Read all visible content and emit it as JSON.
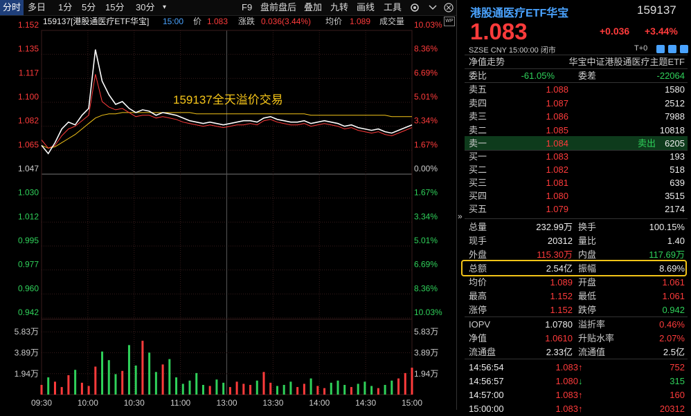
{
  "toolbar": {
    "tabs": [
      "分时",
      "多日",
      "1分",
      "5分",
      "15分",
      "30分",
      "▾"
    ],
    "right_items": [
      "F9",
      "盘前盘后",
      "叠加",
      "九转",
      "画线",
      "工具"
    ],
    "gear": "gear-icon",
    "chevron": "chevron-down-icon"
  },
  "chart_header": {
    "name": "159137[港股通医疗ETF华宝]",
    "time": "15:00",
    "price_label": "价",
    "price": "1.083",
    "change_label": "涨跌",
    "change": "0.036(3.44%)",
    "avg_label": "均价",
    "avg": "1.089",
    "vol_label": "成交量"
  },
  "annotation": "159137全天溢价交易",
  "chart_data": {
    "type": "line",
    "y_ticks_left": [
      "1.152",
      "1.135",
      "1.117",
      "1.100",
      "1.082",
      "1.065",
      "1.047",
      "1.030",
      "1.012",
      "0.995",
      "0.977",
      "0.960",
      "0.942"
    ],
    "y_ticks_right": [
      "10.03%",
      "8.36%",
      "6.69%",
      "5.01%",
      "3.34%",
      "1.67%",
      "0.00%",
      "1.67%",
      "3.34%",
      "5.01%",
      "6.69%",
      "8.36%",
      "10.03%"
    ],
    "vol_ticks": [
      "5.83万",
      "3.89万",
      "1.94万"
    ],
    "x_ticks": [
      "09:30",
      "10:00",
      "10:30",
      "11:00",
      "13:00",
      "13:30",
      "14:00",
      "14:30",
      "15:00"
    ],
    "ylim": [
      0.942,
      1.152
    ],
    "prev_close": 1.047,
    "price_series": [
      1.068,
      1.062,
      1.07,
      1.08,
      1.085,
      1.083,
      1.09,
      1.095,
      1.138,
      1.115,
      1.105,
      1.098,
      1.1,
      1.095,
      1.092,
      1.094,
      1.093,
      1.09,
      1.092,
      1.091,
      1.09,
      1.088,
      1.086,
      1.085,
      1.084,
      1.085,
      1.084,
      1.083,
      1.084,
      1.085,
      1.086,
      1.086,
      1.085,
      1.088,
      1.089,
      1.087,
      1.086,
      1.085,
      1.085,
      1.086,
      1.084,
      1.085,
      1.086,
      1.085,
      1.084,
      1.082,
      1.083,
      1.081,
      1.08,
      1.079,
      1.08,
      1.078,
      1.077,
      1.079,
      1.081,
      1.083
    ],
    "nav_series": [
      1.072,
      1.066,
      1.068,
      1.075,
      1.08,
      1.082,
      1.086,
      1.09,
      1.12,
      1.1,
      1.096,
      1.094,
      1.095,
      1.092,
      1.089,
      1.09,
      1.09,
      1.088,
      1.089,
      1.088,
      1.087,
      1.085,
      1.084,
      1.083,
      1.082,
      1.083,
      1.082,
      1.081,
      1.082,
      1.083,
      1.083,
      1.084,
      1.083,
      1.086,
      1.087,
      1.085,
      1.084,
      1.083,
      1.083,
      1.084,
      1.082,
      1.083,
      1.084,
      1.083,
      1.082,
      1.08,
      1.081,
      1.079,
      1.078,
      1.077,
      1.078,
      1.076,
      1.075,
      1.077,
      1.079,
      1.081
    ],
    "avg_series": [
      1.068,
      1.066,
      1.067,
      1.07,
      1.073,
      1.076,
      1.08,
      1.084,
      1.088,
      1.09,
      1.091,
      1.091,
      1.092,
      1.092,
      1.092,
      1.092,
      1.092,
      1.092,
      1.092,
      1.092,
      1.092,
      1.092,
      1.092,
      1.091,
      1.091,
      1.091,
      1.091,
      1.091,
      1.091,
      1.091,
      1.091,
      1.091,
      1.091,
      1.091,
      1.091,
      1.091,
      1.091,
      1.091,
      1.091,
      1.091,
      1.09,
      1.09,
      1.09,
      1.09,
      1.09,
      1.09,
      1.09,
      1.09,
      1.09,
      1.09,
      1.09,
      1.09,
      1.089,
      1.089,
      1.089,
      1.089
    ],
    "volume_series": [
      0.9,
      1.6,
      1.2,
      0.7,
      1.8,
      2.3,
      1.1,
      0.8,
      2.6,
      4.0,
      3.2,
      1.9,
      2.2,
      4.6,
      2.7,
      5.0,
      3.9,
      2.1,
      2.8,
      3.3,
      1.6,
      1.0,
      1.3,
      2.0,
      0.9,
      0.8,
      1.4,
      1.1,
      0.7,
      1.2,
      1.0,
      0.9,
      1.3,
      2.1,
      1.1,
      0.8,
      0.9,
      1.2,
      0.7,
      1.0,
      1.5,
      0.8,
      0.6,
      1.1,
      1.3,
      0.9,
      0.7,
      1.0,
      1.2,
      0.8,
      0.6,
      0.9,
      1.3,
      1.5,
      2.0,
      2.5
    ],
    "vol_max": 7.0
  },
  "quote": {
    "title": "港股通医疗ETF华宝",
    "code": "159137",
    "price": "1.083",
    "change": "+0.036",
    "change_pct": "+3.44%",
    "market": "SZSE",
    "currency": "CNY",
    "time": "15:00:00",
    "status": "闭市",
    "t_plus": "T+0",
    "nav_trend_label": "净值走势",
    "index_name": "华宝中证港股通医疗主题ETF",
    "weibi_label": "委比",
    "weibi": "-61.05%",
    "weicha_label": "委差",
    "weicha": "-22064"
  },
  "sell_orders": [
    {
      "label": "卖五",
      "price": "1.088",
      "vol": "1580"
    },
    {
      "label": "卖四",
      "price": "1.087",
      "vol": "2512"
    },
    {
      "label": "卖三",
      "price": "1.086",
      "vol": "7988"
    },
    {
      "label": "卖二",
      "price": "1.085",
      "vol": "10818"
    },
    {
      "label": "卖一",
      "price": "1.084",
      "vol": "6205",
      "note": "卖出"
    }
  ],
  "buy_orders": [
    {
      "label": "买一",
      "price": "1.083",
      "vol": "193"
    },
    {
      "label": "买二",
      "price": "1.082",
      "vol": "518"
    },
    {
      "label": "买三",
      "price": "1.081",
      "vol": "639"
    },
    {
      "label": "买四",
      "price": "1.080",
      "vol": "3515"
    },
    {
      "label": "买五",
      "price": "1.079",
      "vol": "2174"
    }
  ],
  "stats": [
    {
      "l1": "总量",
      "v1": "232.99万",
      "c1": "white",
      "l2": "换手",
      "v2": "100.15%",
      "c2": "white"
    },
    {
      "l1": "现手",
      "v1": "20312",
      "c1": "white",
      "l2": "量比",
      "v2": "1.40",
      "c2": "white"
    },
    {
      "l1": "外盘",
      "v1": "115.30万",
      "c1": "red",
      "l2": "内盘",
      "v2": "117.69万",
      "c2": "green"
    },
    {
      "l1": "总额",
      "v1": "2.54亿",
      "c1": "white",
      "l2": "振幅",
      "v2": "8.69%",
      "c2": "white"
    },
    {
      "l1": "均价",
      "v1": "1.089",
      "c1": "red",
      "l2": "开盘",
      "v2": "1.061",
      "c2": "red"
    },
    {
      "l1": "最高",
      "v1": "1.152",
      "c1": "red",
      "l2": "最低",
      "v2": "1.061",
      "c2": "red"
    },
    {
      "l1": "涨停",
      "v1": "1.152",
      "c1": "red",
      "l2": "跌停",
      "v2": "0.942",
      "c2": "green"
    }
  ],
  "stats2": [
    {
      "l1": "IOPV",
      "v1": "1.0780",
      "c1": "white",
      "l2": "溢折率",
      "v2": "0.46%",
      "c2": "red"
    },
    {
      "l1": "净值",
      "v1": "1.0610",
      "c1": "red",
      "l2": "升贴水率",
      "v2": "2.07%",
      "c2": "red"
    },
    {
      "l1": "流通盘",
      "v1": "2.33亿",
      "c1": "white",
      "l2": "流通值",
      "v2": "2.5亿",
      "c2": "white"
    }
  ],
  "ticks": [
    {
      "time": "14:56:54",
      "price": "1.083",
      "dir": "up",
      "vol": "752"
    },
    {
      "time": "14:56:57",
      "price": "1.080",
      "dir": "down",
      "vol": "315"
    },
    {
      "time": "14:57:00",
      "price": "1.083",
      "dir": "up",
      "vol": "160"
    },
    {
      "time": "15:00:00",
      "price": "1.083",
      "dir": "up",
      "vol": "20312"
    }
  ],
  "colors": {
    "up": "#ff3b3b",
    "down": "#2fd15a",
    "highlight": "#f5c518",
    "avg": "#f5c518"
  }
}
